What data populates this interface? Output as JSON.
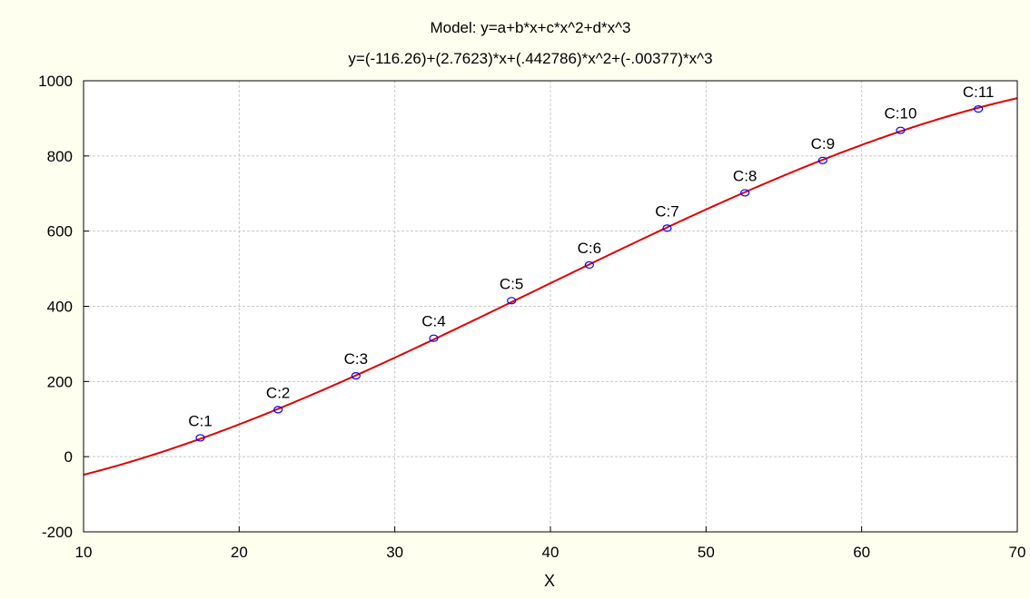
{
  "chart_data": {
    "type": "scatter",
    "title": "Model: y=a+b*x+c*x^2+d*x^3",
    "subtitle": "y=(-116.26)+(2.7623)*x+(.442786)*x^2+(-.00377)*x^3",
    "xlabel": "X",
    "ylabel": "",
    "xlim": [
      10,
      70
    ],
    "ylim": [
      -200,
      1000
    ],
    "xticks": [
      10,
      20,
      30,
      40,
      50,
      60,
      70
    ],
    "yticks": [
      -200,
      0,
      200,
      400,
      600,
      800,
      1000
    ],
    "grid": true,
    "points": [
      {
        "label": "C:1",
        "x": 17.5,
        "y": 50
      },
      {
        "label": "C:2",
        "x": 22.5,
        "y": 125
      },
      {
        "label": "C:3",
        "x": 27.5,
        "y": 215
      },
      {
        "label": "C:4",
        "x": 32.5,
        "y": 315
      },
      {
        "label": "C:5",
        "x": 37.5,
        "y": 415
      },
      {
        "label": "C:6",
        "x": 42.5,
        "y": 510
      },
      {
        "label": "C:7",
        "x": 47.5,
        "y": 608
      },
      {
        "label": "C:8",
        "x": 52.5,
        "y": 702
      },
      {
        "label": "C:9",
        "x": 57.5,
        "y": 788
      },
      {
        "label": "C:10",
        "x": 62.5,
        "y": 868
      },
      {
        "label": "C:11",
        "x": 67.5,
        "y": 925
      }
    ],
    "fit": {
      "type": "polynomial",
      "coefficients": [
        -116.26,
        2.7623,
        0.442786,
        -0.00377
      ]
    },
    "colors": {
      "background": "#fffff0",
      "plot_background": "#ffffff",
      "fit_line": "#e00000",
      "marker": "#0000ff",
      "grid": "#c8c8c8"
    }
  }
}
